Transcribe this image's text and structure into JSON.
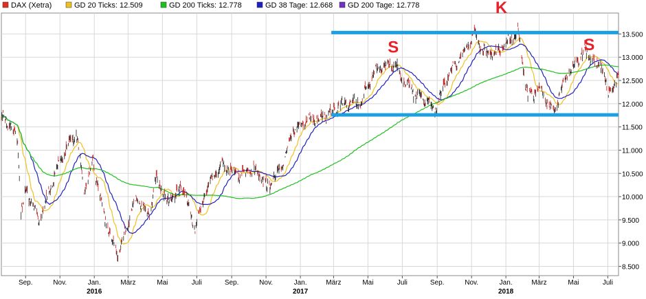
{
  "chart_data": {
    "type": "line",
    "title": "",
    "xlabel": "",
    "ylabel": "",
    "ylim": [
      8300,
      13950
    ],
    "x_range": [
      "2015-07-20",
      "2018-07-20"
    ],
    "y_ticks": [
      8500,
      9000,
      9500,
      10000,
      10500,
      11000,
      11500,
      12000,
      12500,
      13000,
      13500
    ],
    "y_tick_labels": [
      "8.500",
      "9.000",
      "9.500",
      "10.000",
      "10.500",
      "11.000",
      "11.500",
      "12.000",
      "12.500",
      "13.000",
      "13.500"
    ],
    "y_axis_side": "right",
    "grid": true,
    "x_ticks": [
      {
        "date": "2015-09-01",
        "label": "Sep."
      },
      {
        "date": "2015-11-01",
        "label": "Nov."
      },
      {
        "date": "2016-01-01",
        "label": "Jan.",
        "year": "2016"
      },
      {
        "date": "2016-03-01",
        "label": "März"
      },
      {
        "date": "2016-05-01",
        "label": "Mai"
      },
      {
        "date": "2016-07-01",
        "label": "Juli"
      },
      {
        "date": "2016-09-01",
        "label": "Sep."
      },
      {
        "date": "2016-11-01",
        "label": "Nov."
      },
      {
        "date": "2017-01-01",
        "label": "Jan.",
        "year": "2017"
      },
      {
        "date": "2017-03-01",
        "label": "März"
      },
      {
        "date": "2017-05-01",
        "label": "Mai"
      },
      {
        "date": "2017-07-01",
        "label": "Juli"
      },
      {
        "date": "2017-09-01",
        "label": "Sep."
      },
      {
        "date": "2017-11-01",
        "label": "Nov."
      },
      {
        "date": "2018-01-01",
        "label": "Jan.",
        "year": "2018"
      },
      {
        "date": "2018-03-01",
        "label": "März"
      },
      {
        "date": "2018-05-01",
        "label": "Mai"
      },
      {
        "date": "2018-07-01",
        "label": "Juli"
      }
    ],
    "legend_position": "top-left",
    "legend": [
      {
        "label": "DAX (Xetra)",
        "color": "#e03020"
      },
      {
        "label": "GD 20 Ticks: 12.509",
        "color": "#f0c020"
      },
      {
        "label": "GD 200 Ticks: 12.778",
        "color": "#20c020"
      },
      {
        "label": "GD 38 Tage: 12.668",
        "color": "#2020c0"
      },
      {
        "label": "GD 200 Tage: 12.778",
        "color": "#7030c0"
      }
    ],
    "series": [
      {
        "name": "DAX (Xetra)",
        "kind": "ohlc",
        "color": "#000000",
        "keypoints": [
          [
            "2015-07-20",
            11700
          ],
          [
            "2015-08-05",
            11550
          ],
          [
            "2015-08-18",
            11200
          ],
          [
            "2015-08-24",
            9700
          ],
          [
            "2015-09-03",
            10150
          ],
          [
            "2015-09-24",
            9450
          ],
          [
            "2015-10-08",
            9950
          ],
          [
            "2015-11-03",
            10850
          ],
          [
            "2015-11-30",
            11350
          ],
          [
            "2015-12-14",
            10150
          ],
          [
            "2015-12-30",
            10750
          ],
          [
            "2016-01-20",
            9500
          ],
          [
            "2016-02-11",
            8750
          ],
          [
            "2016-03-15",
            9950
          ],
          [
            "2016-04-08",
            9600
          ],
          [
            "2016-04-20",
            10400
          ],
          [
            "2016-05-10",
            9900
          ],
          [
            "2016-06-08",
            10200
          ],
          [
            "2016-06-27",
            9300
          ],
          [
            "2016-07-20",
            10200
          ],
          [
            "2016-08-15",
            10700
          ],
          [
            "2016-09-15",
            10450
          ],
          [
            "2016-10-10",
            10600
          ],
          [
            "2016-11-04",
            10200
          ],
          [
            "2016-11-28",
            10650
          ],
          [
            "2016-12-20",
            11450
          ],
          [
            "2017-01-12",
            11650
          ],
          [
            "2017-02-10",
            11700
          ],
          [
            "2017-03-20",
            12050
          ],
          [
            "2017-04-18",
            12050
          ],
          [
            "2017-05-15",
            12750
          ],
          [
            "2017-06-20",
            12850
          ],
          [
            "2017-07-05",
            12450
          ],
          [
            "2017-08-01",
            12150
          ],
          [
            "2017-08-29",
            11900
          ],
          [
            "2017-09-20",
            12600
          ],
          [
            "2017-10-20",
            13100
          ],
          [
            "2017-11-07",
            13500
          ],
          [
            "2017-11-27",
            13050
          ],
          [
            "2017-12-15",
            13100
          ],
          [
            "2018-01-23",
            13550
          ],
          [
            "2018-02-09",
            12150
          ],
          [
            "2018-03-01",
            12300
          ],
          [
            "2018-03-26",
            11800
          ],
          [
            "2018-04-18",
            12600
          ],
          [
            "2018-05-22",
            13150
          ],
          [
            "2018-06-08",
            12800
          ],
          [
            "2018-06-18",
            12900
          ],
          [
            "2018-07-02",
            12200
          ],
          [
            "2018-07-20",
            12550
          ]
        ]
      },
      {
        "name": "GD 20 Ticks: 12.509",
        "kind": "sma",
        "period": 20,
        "color": "#f0c020"
      },
      {
        "name": "GD 38 Tage: 12.668",
        "kind": "sma",
        "period": 38,
        "color": "#2020c0"
      },
      {
        "name": "GD 200 Tage: 12.778",
        "kind": "sma",
        "period": 200,
        "color": "#20c020"
      }
    ],
    "annotations": {
      "horizontal_lines": [
        {
          "value": 13530,
          "from": "2017-02-25",
          "to": "2018-07-20",
          "color": "#1ea0e0"
        },
        {
          "value": 11760,
          "from": "2017-02-25",
          "to": "2018-07-20",
          "color": "#1ea0e0"
        }
      ],
      "labels": [
        {
          "text": "S",
          "date": "2017-06-15",
          "value": 13100,
          "color": "#e8202a"
        },
        {
          "text": "K",
          "date": "2017-12-24",
          "value": 13950,
          "color": "#e8202a"
        },
        {
          "text": "S",
          "date": "2018-05-29",
          "value": 13150,
          "color": "#e8202a"
        }
      ]
    }
  }
}
